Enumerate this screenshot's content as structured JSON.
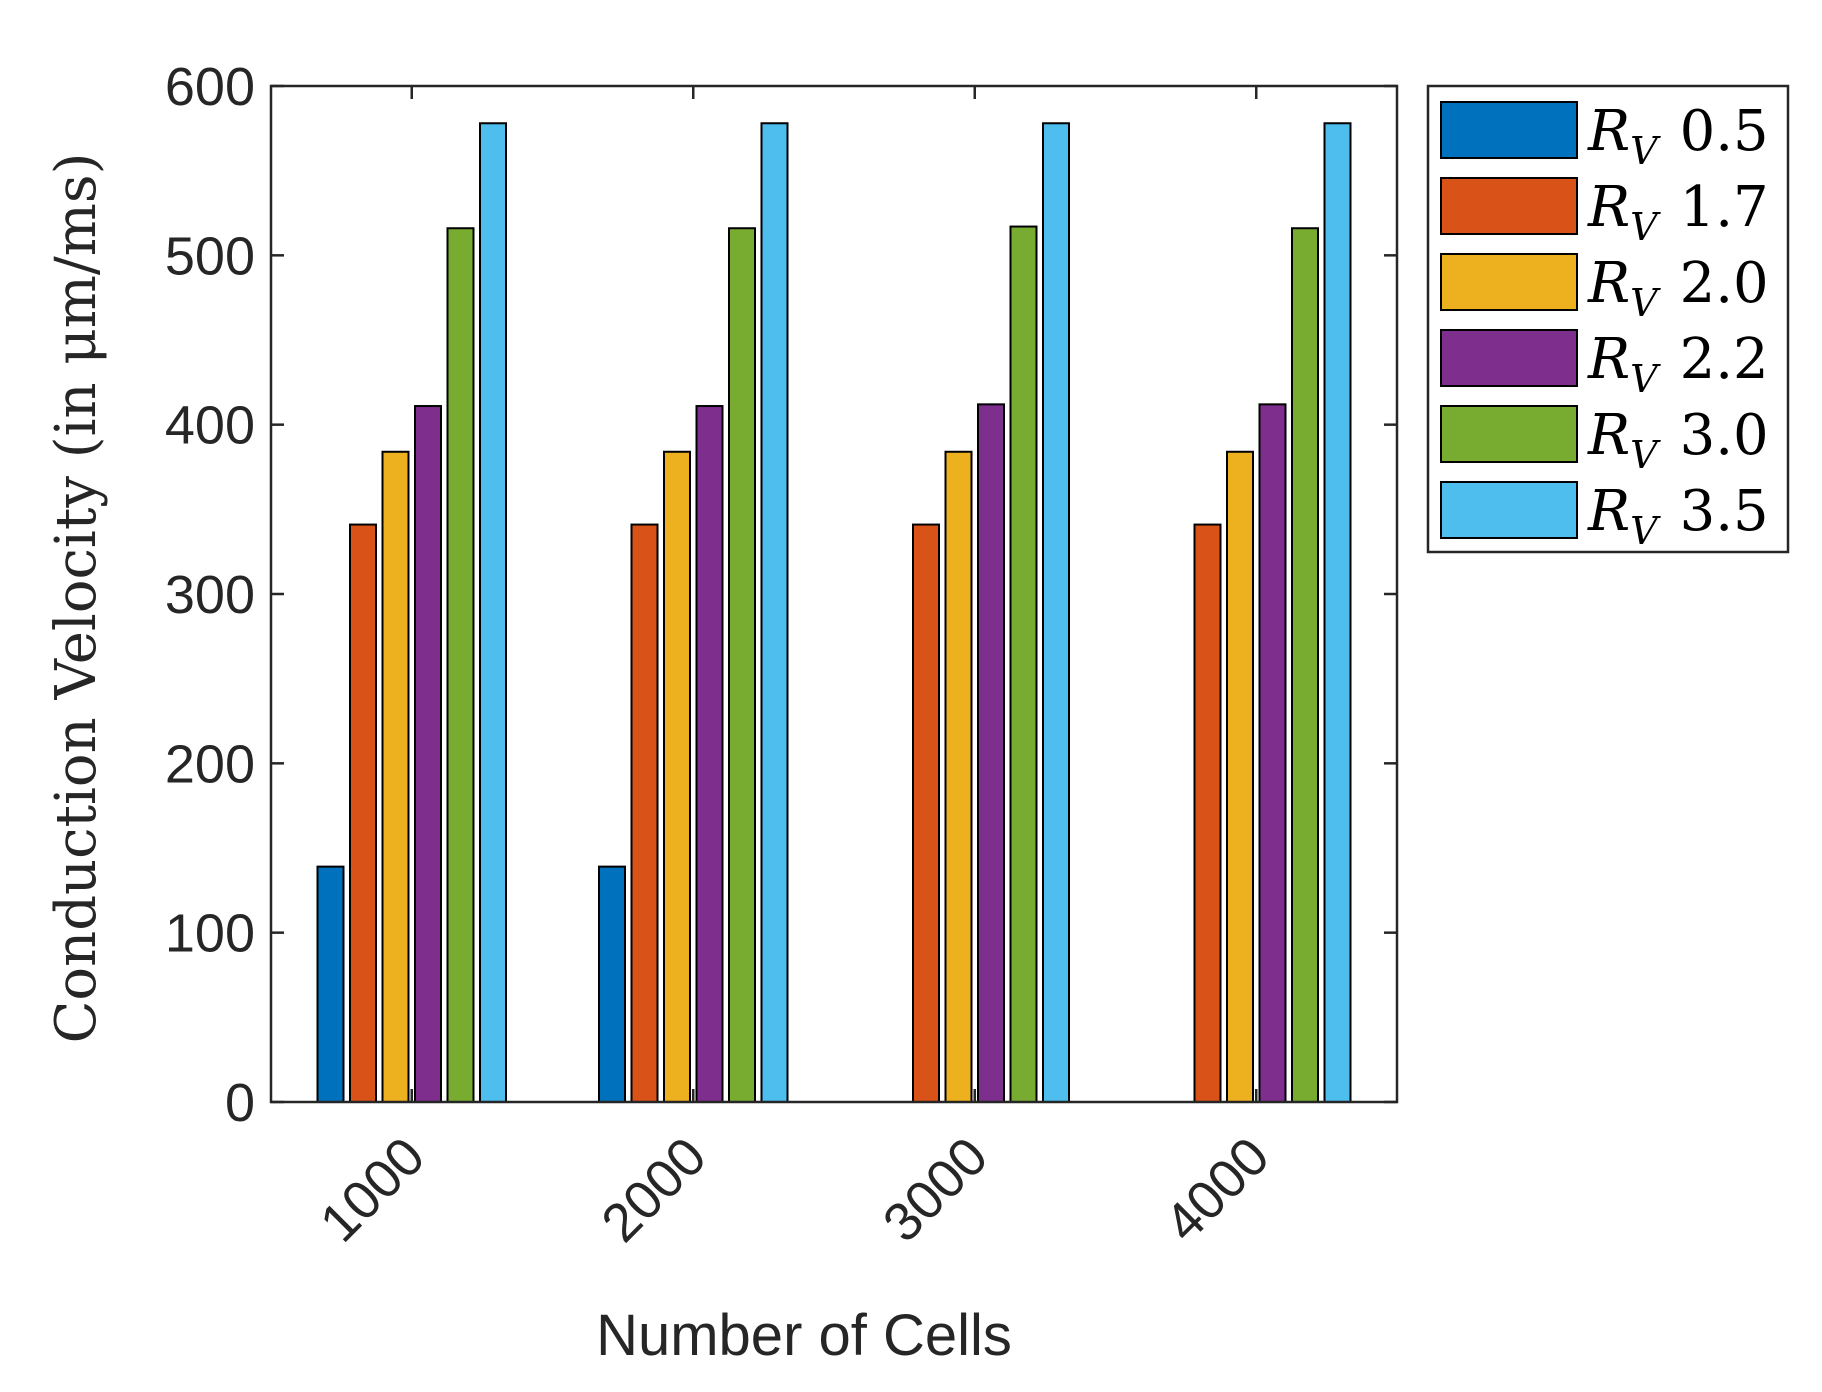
{
  "chart_data": {
    "type": "bar",
    "title": "",
    "xlabel": "Number of Cells",
    "ylabel": "Conduction Velocity (in μm/ms)",
    "categories": [
      "1000",
      "2000",
      "3000",
      "4000"
    ],
    "ylim": [
      0,
      600
    ],
    "yticks": [
      "0",
      "100",
      "200",
      "300",
      "400",
      "500",
      "600"
    ],
    "grid": false,
    "legend_position": "outside-top-right",
    "legend_prefix": "R",
    "legend_subscript": "V",
    "series": [
      {
        "name": "0.5",
        "color": "#0072BD",
        "values": [
          139,
          139,
          0,
          0
        ]
      },
      {
        "name": "1.7",
        "color": "#D95319",
        "values": [
          341,
          341,
          341,
          341
        ]
      },
      {
        "name": "2.0",
        "color": "#EDB120",
        "values": [
          384,
          384,
          384,
          384
        ]
      },
      {
        "name": "2.2",
        "color": "#7E2F8E",
        "values": [
          411,
          411,
          412,
          412
        ]
      },
      {
        "name": "3.0",
        "color": "#77AC30",
        "values": [
          516,
          516,
          517,
          516
        ]
      },
      {
        "name": "3.5",
        "color": "#4DBEEE",
        "values": [
          578,
          578,
          578,
          578
        ]
      }
    ]
  }
}
